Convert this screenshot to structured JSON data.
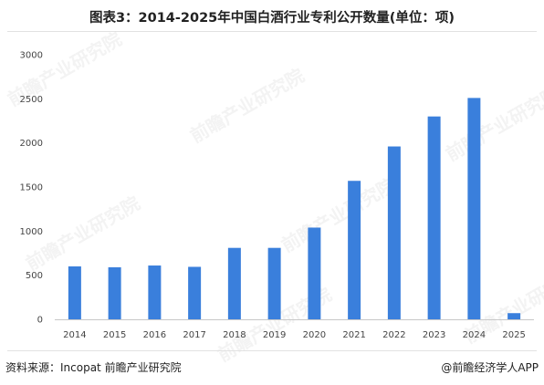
{
  "header": {
    "title": "图表3：2014-2025年中国白酒行业专利公开数量(单位：项)"
  },
  "footer": {
    "source": "资料来源：Incopat 前瞻产业研究院",
    "brand": "@前瞻经济学人APP"
  },
  "watermark": {
    "text": "前瞻产业研究院"
  },
  "colors": {
    "bar": "#3a7fdc",
    "axis": "#c8c8c8",
    "text": "#444444"
  },
  "chart_data": {
    "type": "bar",
    "categories": [
      "2014",
      "2015",
      "2016",
      "2017",
      "2018",
      "2019",
      "2020",
      "2021",
      "2022",
      "2023",
      "2024",
      "2025"
    ],
    "values": [
      600,
      590,
      610,
      595,
      810,
      810,
      1040,
      1570,
      1960,
      2300,
      2510,
      70
    ],
    "title": "图表3：2014-2025年中国白酒行业专利公开数量(单位：项)",
    "xlabel": "",
    "ylabel": "",
    "ylim": [
      0,
      3000
    ],
    "yticks": [
      0,
      500,
      1000,
      1500,
      2000,
      2500,
      3000
    ],
    "grid": false,
    "legend": "none"
  }
}
